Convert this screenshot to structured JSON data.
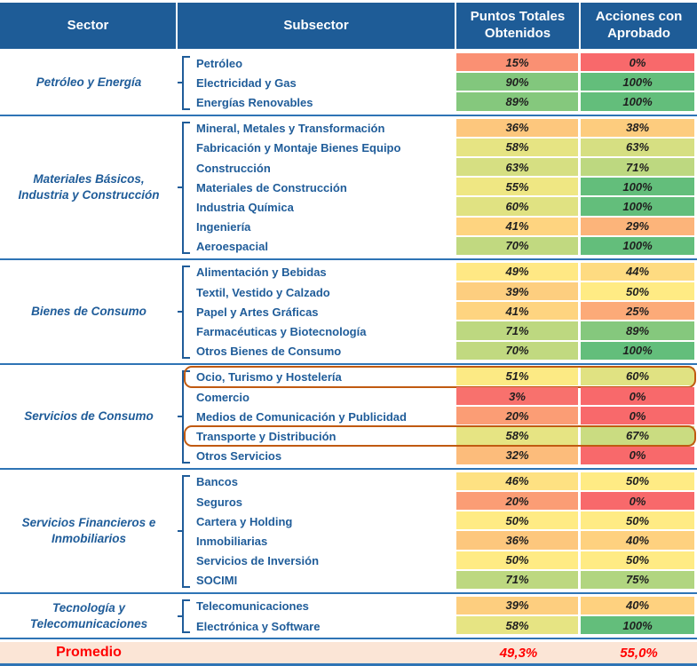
{
  "colors": {
    "header_bg": "#1E5C97",
    "text_blue": "#1F5C99",
    "line_blue": "#2E74B5",
    "footer_bg": "#FBE5D6",
    "footer_text": "#FF0000",
    "highlight": "#C05A11",
    "scale_min": "#F8696B",
    "scale_mid": "#FFEB84",
    "scale_max": "#63BE7B"
  },
  "chart_data": {
    "type": "heatmap",
    "title": "",
    "columns": [
      "Sector",
      "Subsector",
      "Puntos Totales Obtenidos",
      "Acciones con Aprobado"
    ],
    "value_format": "percent",
    "color_scale": {
      "min_value": 0,
      "mid_value": 50,
      "max_value": 100
    },
    "groups": [
      {
        "sector": "Petróleo y Energía",
        "rows": [
          {
            "name": "Petróleo",
            "puntos": 15,
            "acciones": 0
          },
          {
            "name": "Electricidad y Gas",
            "puntos": 90,
            "acciones": 100
          },
          {
            "name": "Energías Renovables",
            "puntos": 89,
            "acciones": 100
          }
        ]
      },
      {
        "sector": "Materiales Básicos, Industria y Construcción",
        "rows": [
          {
            "name": "Mineral, Metales y Transformación",
            "puntos": 36,
            "acciones": 38
          },
          {
            "name": "Fabricación y Montaje Bienes Equipo",
            "puntos": 58,
            "acciones": 63
          },
          {
            "name": "Construcción",
            "puntos": 63,
            "acciones": 71
          },
          {
            "name": "Materiales de Construcción",
            "puntos": 55,
            "acciones": 100
          },
          {
            "name": "Industria Química",
            "puntos": 60,
            "acciones": 100
          },
          {
            "name": "Ingeniería",
            "puntos": 41,
            "acciones": 29
          },
          {
            "name": "Aeroespacial",
            "puntos": 70,
            "acciones": 100
          }
        ]
      },
      {
        "sector": "Bienes de Consumo",
        "rows": [
          {
            "name": "Alimentación y Bebidas",
            "puntos": 49,
            "acciones": 44
          },
          {
            "name": "Textil, Vestido y Calzado",
            "puntos": 39,
            "acciones": 50
          },
          {
            "name": "Papel y Artes Gráficas",
            "puntos": 41,
            "acciones": 25
          },
          {
            "name": "Farmacéuticas y Biotecnología",
            "puntos": 71,
            "acciones": 89
          },
          {
            "name": "Otros Bienes de Consumo",
            "puntos": 70,
            "acciones": 100
          }
        ]
      },
      {
        "sector": "Servicios de Consumo",
        "rows": [
          {
            "name": "Ocio, Turismo y Hostelería",
            "puntos": 51,
            "acciones": 60,
            "highlight": true
          },
          {
            "name": "Comercio",
            "puntos": 3,
            "acciones": 0
          },
          {
            "name": "Medios de Comunicación y Publicidad",
            "puntos": 20,
            "acciones": 0
          },
          {
            "name": "Transporte y Distribución",
            "puntos": 58,
            "acciones": 67,
            "highlight": true
          },
          {
            "name": "Otros Servicios",
            "puntos": 32,
            "acciones": 0
          }
        ]
      },
      {
        "sector": "Servicios Financieros e Inmobiliarios",
        "rows": [
          {
            "name": "Bancos",
            "puntos": 46,
            "acciones": 50
          },
          {
            "name": "Seguros",
            "puntos": 20,
            "acciones": 0
          },
          {
            "name": "Cartera y Holding",
            "puntos": 50,
            "acciones": 50
          },
          {
            "name": "Inmobiliarias",
            "puntos": 36,
            "acciones": 40
          },
          {
            "name": "Servicios de Inversión",
            "puntos": 50,
            "acciones": 50
          },
          {
            "name": "SOCIMI",
            "puntos": 71,
            "acciones": 75
          }
        ]
      },
      {
        "sector": "Tecnología y Telecomunicaciones",
        "rows": [
          {
            "name": "Telecomunicaciones",
            "puntos": 39,
            "acciones": 40
          },
          {
            "name": "Electrónica y Software",
            "puntos": 58,
            "acciones": 100
          }
        ]
      }
    ],
    "highlighted_rows": [
      "Ocio, Turismo y Hostelería",
      "Transporte y Distribución"
    ],
    "footer": {
      "label": "Promedio",
      "puntos": "49,3%",
      "acciones": "55,0%"
    }
  }
}
